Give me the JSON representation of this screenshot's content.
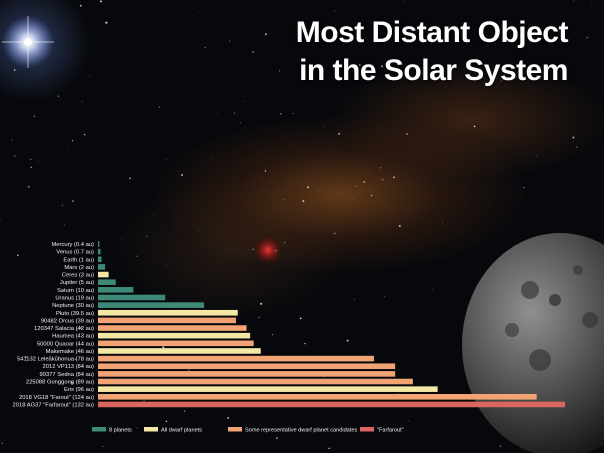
{
  "title_line1": "Most Distant Object",
  "title_line2": "in the Solar System",
  "colors": {
    "8 planets": "#3e8a79",
    "All dwarf planets": "#f5e8a4",
    "Some representative dwarf planet candidates": "#f2a374",
    "\"Farfarout\"": "#d9675f"
  },
  "chart_data": {
    "type": "bar",
    "orientation": "horizontal",
    "title": "Most Distant Object in the Solar System",
    "xlabel": "",
    "ylabel": "",
    "unit": "au",
    "xlim": [
      0,
      132
    ],
    "grid": false,
    "legend_position": "bottom",
    "legend": [
      "8 planets",
      "All dwarf planets",
      "Some representative dwarf planet candidates",
      "\"Farfarout\""
    ],
    "categories": [
      "Mercury (0.4 au)",
      "Venus (0.7 au)",
      "Earth (1 au)",
      "Mars (2 au)",
      "Ceres (3 au)",
      "Jupiter (5 au)",
      "Saturn (10 au)",
      "Uranus (19 au)",
      "Neptune (30 au)",
      "Pluto (39.5 au)",
      "90482 Orcus (39 au)",
      "120347 Salacia (42 au)",
      "Haumea (43 au)",
      "50000 Quaoar (44 au)",
      "Makemake (46 au)",
      "541132 Leleākūhonua (78 au)",
      "2012 VP113 (84 au)",
      "90377 Sedna (84 au)",
      "225088 Gonggong (89 au)",
      "Eris (96 au)",
      "2018 VG18 \"Farout\" (124 au)",
      "2018 AG37 \"Farfarout\" (132 au)"
    ],
    "values": [
      0.4,
      0.7,
      1,
      2,
      3,
      5,
      10,
      19,
      30,
      39.5,
      39,
      42,
      43,
      44,
      46,
      78,
      84,
      84,
      89,
      96,
      124,
      132
    ],
    "groups": [
      "8 planets",
      "8 planets",
      "8 planets",
      "8 planets",
      "All dwarf planets",
      "8 planets",
      "8 planets",
      "8 planets",
      "8 planets",
      "All dwarf planets",
      "Some representative dwarf planet candidates",
      "Some representative dwarf planet candidates",
      "All dwarf planets",
      "Some representative dwarf planet candidates",
      "All dwarf planets",
      "Some representative dwarf planet candidates",
      "Some representative dwarf planet candidates",
      "Some representative dwarf planet candidates",
      "Some representative dwarf planet candidates",
      "All dwarf planets",
      "Some representative dwarf planet candidates",
      "\"Farfarout\""
    ]
  }
}
